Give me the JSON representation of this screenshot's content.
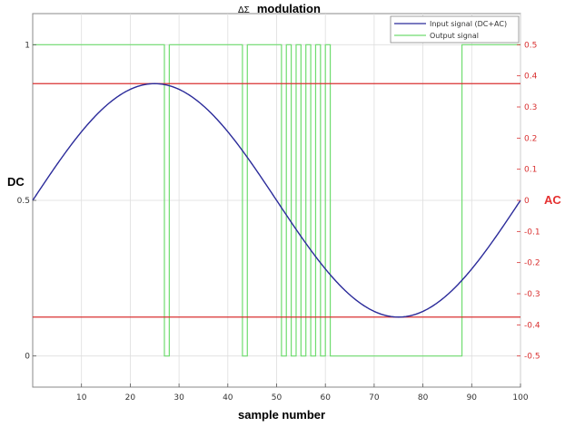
{
  "chart_data": {
    "type": "line",
    "title_symbol": "ΔΣ",
    "title": "modulation",
    "xlabel": "sample number",
    "ylabel_left": "DC",
    "ylabel_right": "AC",
    "xlim": [
      0,
      100
    ],
    "ylim_left": [
      -0.1,
      1.1
    ],
    "ylim_right": [
      -0.6,
      0.6
    ],
    "grid": true,
    "legend_position": "top-right",
    "x_ticks": [
      "10",
      "20",
      "30",
      "40",
      "50",
      "60",
      "70",
      "80",
      "90",
      "100"
    ],
    "y_left_ticks": [
      "0",
      "0.5",
      "1"
    ],
    "y_right_ticks": [
      "-0.5",
      "-0.4",
      "-0.3",
      "-0.2",
      "-0.1",
      "0",
      "0.1",
      "0.2",
      "0.3",
      "0.4",
      "0.5"
    ],
    "series": [
      {
        "name": "Input signal (DC+AC)",
        "color": "#2b2b9a",
        "function": "0.5 + 0.375*sin(2*pi*x/100)"
      },
      {
        "name": "Output signal",
        "color": "#6fdc6f",
        "values": [
          1,
          1,
          1,
          1,
          1,
          1,
          1,
          1,
          1,
          1,
          1,
          1,
          1,
          1,
          1,
          1,
          1,
          1,
          1,
          1,
          1,
          1,
          1,
          1,
          1,
          1,
          1,
          0,
          1,
          1,
          1,
          1,
          1,
          1,
          1,
          1,
          1,
          1,
          1,
          1,
          1,
          1,
          1,
          0,
          1,
          1,
          1,
          1,
          1,
          1,
          1,
          0,
          1,
          0,
          1,
          0,
          1,
          0,
          1,
          0,
          1,
          0,
          0,
          0,
          0,
          0,
          0,
          0,
          0,
          0,
          0,
          0,
          0,
          0,
          0,
          0,
          0,
          0,
          0,
          0,
          0,
          0,
          0,
          0,
          0,
          0,
          0,
          0,
          1,
          1,
          1,
          1,
          1,
          1,
          1,
          1,
          1,
          1,
          1,
          1,
          1
        ]
      }
    ],
    "reference_lines_ac": [
      0.375,
      -0.375
    ],
    "reference_color": "#d93030"
  }
}
